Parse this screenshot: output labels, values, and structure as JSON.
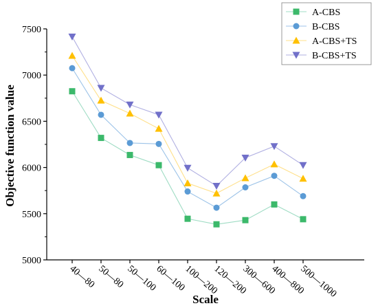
{
  "chart_data": {
    "type": "line",
    "title": "",
    "xlabel": "Scale",
    "ylabel": "Objective function value",
    "categories": [
      "40—80",
      "50—80",
      "50—100",
      "60—100",
      "100—200",
      "120—200",
      "300—600",
      "400—800",
      "500—1000"
    ],
    "ylim": [
      5000,
      7500
    ],
    "yticks": [
      5000,
      5500,
      6000,
      6500,
      7000,
      7500
    ],
    "grid": false,
    "legend_position": "top-right",
    "series": [
      {
        "name": "A-CBS",
        "marker": "square",
        "color": "#3cb96b",
        "line_color": "#9fdcc4",
        "values": [
          6825,
          6320,
          6135,
          6025,
          5445,
          5385,
          5430,
          5600,
          5440
        ]
      },
      {
        "name": "B-CBS",
        "marker": "circle",
        "color": "#5b9bd5",
        "line_color": "#9cc3e8",
        "values": [
          7075,
          6570,
          6265,
          6255,
          5740,
          5565,
          5785,
          5910,
          5690
        ]
      },
      {
        "name": "A-CBS+TS",
        "marker": "triangle-up",
        "color": "#ffc000",
        "line_color": "#ffe08a",
        "values": [
          7210,
          6725,
          6585,
          6420,
          5830,
          5720,
          5885,
          6035,
          5880
        ]
      },
      {
        "name": "B-CBS+TS",
        "marker": "triangle-down",
        "color": "#7170c9",
        "line_color": "#b1b0e2",
        "values": [
          7415,
          6860,
          6680,
          6570,
          5995,
          5800,
          6105,
          6230,
          6025
        ]
      }
    ]
  }
}
